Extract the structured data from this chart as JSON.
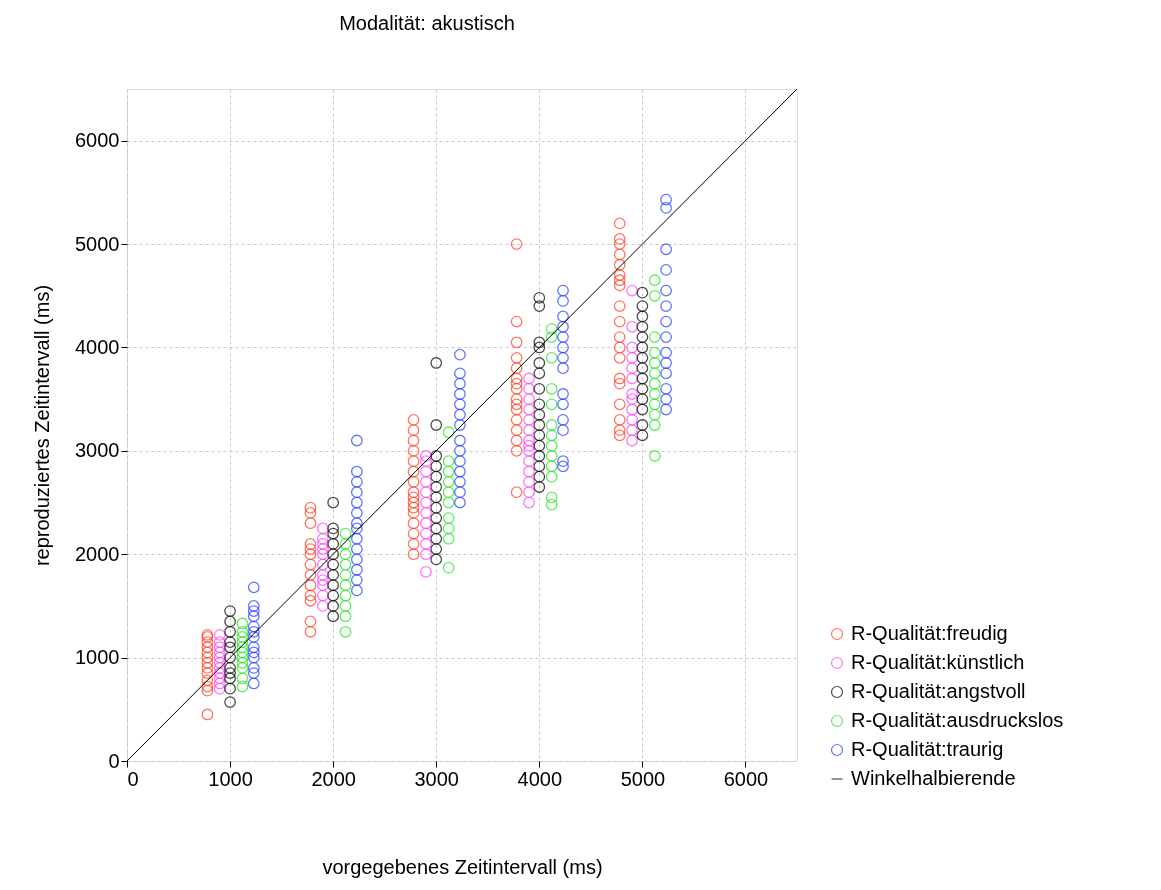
{
  "chart_data": {
    "type": "scatter",
    "title": "Modalität: akustisch",
    "xlabel": "vorgegebenes Zeitintervall (ms)",
    "ylabel": "reproduziertes Zeitintervall (ms)",
    "xlim": [
      0,
      6500
    ],
    "ylim": [
      0,
      6500
    ],
    "xticks": [
      0,
      1000,
      2000,
      3000,
      4000,
      5000,
      6000
    ],
    "yticks": [
      0,
      1000,
      2000,
      3000,
      4000,
      5000,
      6000
    ],
    "grid": true,
    "legend": "right",
    "marker": "circle",
    "series": [
      {
        "name": "R-Qualität:freudig",
        "color": "#ff3c1e",
        "x": [
          780,
          780,
          780,
          780,
          780,
          780,
          780,
          780,
          780,
          780,
          780,
          780,
          780,
          1780,
          1780,
          1780,
          1780,
          1780,
          1780,
          1780,
          1780,
          1780,
          1780,
          1780,
          1780,
          1780,
          2780,
          2780,
          2780,
          2780,
          2780,
          2780,
          2780,
          2780,
          2780,
          2780,
          2780,
          2780,
          2780,
          2780,
          2780,
          2780,
          3780,
          3780,
          3780,
          3780,
          3780,
          3780,
          3780,
          3780,
          3780,
          3780,
          3780,
          3780,
          3780,
          3780,
          3780,
          3780,
          4780,
          4780,
          4780,
          4780,
          4780,
          4780,
          4780,
          4780,
          4780,
          4780,
          4780,
          4780,
          4780,
          4780,
          4780,
          4780,
          4780,
          4780,
          4780
        ],
        "values": [
          450,
          680,
          720,
          780,
          850,
          900,
          950,
          1000,
          1050,
          1100,
          1150,
          1200,
          1220,
          1250,
          1350,
          1550,
          1600,
          1700,
          1800,
          1900,
          2000,
          2050,
          2100,
          2300,
          2400,
          2450,
          2000,
          2100,
          2200,
          2300,
          2400,
          2450,
          2500,
          2550,
          2600,
          2700,
          2800,
          2900,
          3000,
          3100,
          3200,
          3300,
          2600,
          3000,
          3100,
          3200,
          3300,
          3400,
          3450,
          3500,
          3600,
          3650,
          3700,
          3800,
          3900,
          4050,
          4250,
          5000,
          3150,
          3200,
          3300,
          3450,
          3650,
          3700,
          3900,
          4000,
          4100,
          4250,
          4400,
          4600,
          4650,
          4700,
          4800,
          4900,
          5000,
          5050,
          5200
        ]
      },
      {
        "name": "R-Qualität:künstlich",
        "color": "#ff3cff",
        "x": [
          900,
          900,
          900,
          900,
          900,
          900,
          900,
          900,
          900,
          900,
          900,
          1900,
          1900,
          1900,
          1900,
          1900,
          1900,
          1900,
          1900,
          1900,
          1900,
          1900,
          2900,
          2900,
          2900,
          2900,
          2900,
          2900,
          2900,
          2900,
          2900,
          2900,
          2900,
          2900,
          3900,
          3900,
          3900,
          3900,
          3900,
          3900,
          3900,
          3900,
          3900,
          3900,
          3900,
          3900,
          3900,
          3900,
          4900,
          4900,
          4900,
          4900,
          4900,
          4900,
          4900,
          4900,
          4900,
          4900,
          4900,
          4900
        ],
        "values": [
          700,
          750,
          800,
          850,
          900,
          950,
          1000,
          1050,
          1100,
          1150,
          1220,
          1500,
          1600,
          1700,
          1750,
          1800,
          1900,
          2000,
          2050,
          2100,
          2150,
          2250,
          1830,
          2000,
          2100,
          2200,
          2300,
          2400,
          2500,
          2600,
          2700,
          2800,
          2900,
          2950,
          2500,
          2600,
          2700,
          2800,
          2900,
          3000,
          3050,
          3100,
          3200,
          3300,
          3400,
          3500,
          3600,
          3700,
          3100,
          3200,
          3300,
          3400,
          3500,
          3550,
          3700,
          3800,
          3900,
          4000,
          4200,
          4550
        ]
      },
      {
        "name": "R-Qualität:angstvoll",
        "color": "#000000",
        "x": [
          1000,
          1000,
          1000,
          1000,
          1000,
          1000,
          1000,
          1000,
          1000,
          1000,
          1000,
          2000,
          2000,
          2000,
          2000,
          2000,
          2000,
          2000,
          2000,
          2000,
          2000,
          2000,
          3000,
          3000,
          3000,
          3000,
          3000,
          3000,
          3000,
          3000,
          3000,
          3000,
          3000,
          3000,
          3000,
          4000,
          4000,
          4000,
          4000,
          4000,
          4000,
          4000,
          4000,
          4000,
          4000,
          4000,
          4000,
          4000,
          4000,
          4000,
          4000,
          5000,
          5000,
          5000,
          5000,
          5000,
          5000,
          5000,
          5000,
          5000,
          5000,
          5000,
          5000,
          5000,
          5000
        ],
        "values": [
          570,
          700,
          800,
          850,
          900,
          1000,
          1100,
          1150,
          1250,
          1350,
          1450,
          1400,
          1500,
          1600,
          1700,
          1800,
          1900,
          2000,
          2100,
          2200,
          2250,
          2500,
          1950,
          2050,
          2150,
          2250,
          2350,
          2450,
          2550,
          2650,
          2750,
          2850,
          2950,
          3250,
          3850,
          2650,
          2750,
          2850,
          2950,
          3050,
          3150,
          3250,
          3350,
          3450,
          3600,
          3750,
          3850,
          4000,
          4050,
          4400,
          4480,
          3150,
          3250,
          3400,
          3500,
          3600,
          3700,
          3800,
          3900,
          4000,
          4100,
          4200,
          4300,
          4400,
          4530
        ]
      },
      {
        "name": "R-Qualität:ausdruckslos",
        "color": "#1ee61e",
        "x": [
          1120,
          1120,
          1120,
          1120,
          1120,
          1120,
          1120,
          1120,
          1120,
          1120,
          1120,
          2120,
          2120,
          2120,
          2120,
          2120,
          2120,
          2120,
          2120,
          2120,
          2120,
          3120,
          3120,
          3120,
          3120,
          3120,
          3120,
          3120,
          3120,
          3120,
          3120,
          4120,
          4120,
          4120,
          4120,
          4120,
          4120,
          4120,
          4120,
          4120,
          4120,
          4120,
          4120,
          4120,
          5120,
          5120,
          5120,
          5120,
          5120,
          5120,
          5120,
          5120,
          5120,
          5120,
          5120,
          5120
        ],
        "values": [
          720,
          800,
          900,
          950,
          1000,
          1050,
          1100,
          1150,
          1200,
          1250,
          1330,
          1250,
          1400,
          1500,
          1600,
          1700,
          1800,
          1900,
          2000,
          2100,
          2200,
          1870,
          2150,
          2250,
          2350,
          2500,
          2600,
          2700,
          2800,
          2900,
          3180,
          2480,
          2550,
          2750,
          2850,
          2950,
          3050,
          3150,
          3250,
          3450,
          3600,
          3900,
          4100,
          4180,
          2950,
          3250,
          3350,
          3450,
          3550,
          3650,
          3750,
          3850,
          3950,
          4100,
          4500,
          4650
        ]
      },
      {
        "name": "R-Qualität:traurig",
        "color": "#1e3cff",
        "x": [
          1230,
          1230,
          1230,
          1230,
          1230,
          1230,
          1230,
          1230,
          1230,
          1230,
          1230,
          1230,
          1230,
          2230,
          2230,
          2230,
          2230,
          2230,
          2230,
          2230,
          2230,
          2230,
          2230,
          2230,
          2230,
          2230,
          2230,
          3230,
          3230,
          3230,
          3230,
          3230,
          3230,
          3230,
          3230,
          3230,
          3230,
          3230,
          3230,
          3230,
          3230,
          4230,
          4230,
          4230,
          4230,
          4230,
          4230,
          4230,
          4230,
          4230,
          4230,
          4230,
          4230,
          4230,
          4230,
          5230,
          5230,
          5230,
          5230,
          5230,
          5230,
          5230,
          5230,
          5230,
          5230,
          5230,
          5230,
          5230,
          5230
        ],
        "values": [
          750,
          850,
          900,
          1000,
          1050,
          1100,
          1200,
          1250,
          1300,
          1400,
          1450,
          1500,
          1680,
          1650,
          1750,
          1850,
          1950,
          2050,
          2150,
          2250,
          2300,
          2400,
          2500,
          2600,
          2700,
          2800,
          3100,
          2500,
          2600,
          2700,
          2800,
          2900,
          3000,
          3100,
          3250,
          3350,
          3450,
          3550,
          3650,
          3750,
          3930,
          2850,
          2900,
          3200,
          3300,
          3450,
          3550,
          3800,
          3900,
          4000,
          4100,
          4200,
          4300,
          4450,
          4550,
          3400,
          3500,
          3600,
          3750,
          3850,
          3950,
          4100,
          4250,
          4400,
          4550,
          4750,
          4950,
          5350,
          5430
        ]
      },
      {
        "name": "Winkelhalbierende",
        "type": "line",
        "color": "#000000",
        "marker": "none",
        "line_style": "solid",
        "x": [
          0,
          6500
        ],
        "values": [
          0,
          6500
        ]
      }
    ]
  }
}
